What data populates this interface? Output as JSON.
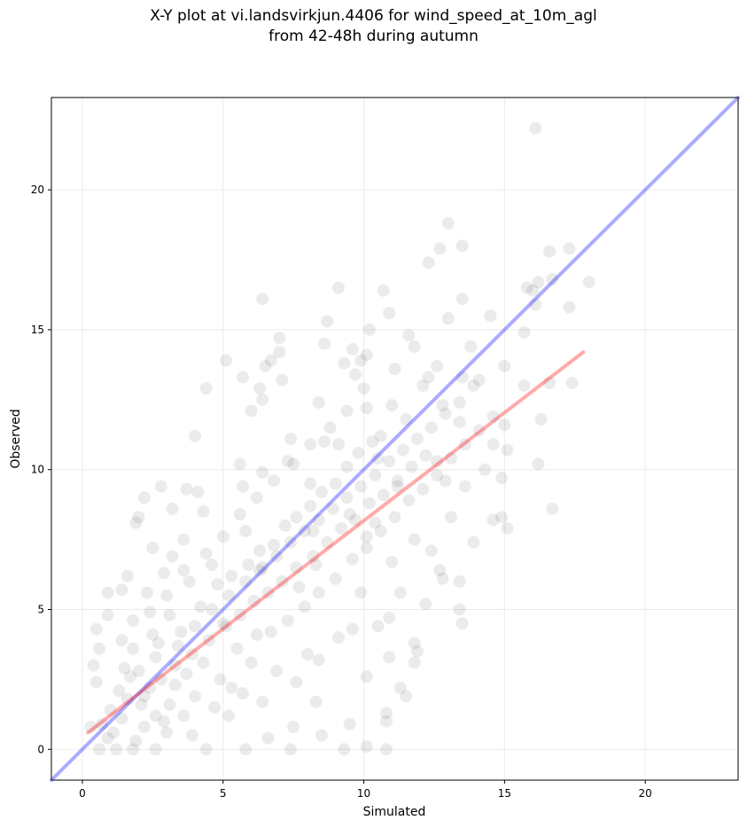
{
  "title": [
    "X-Y plot at vi.landsvirkjun.4406 for wind_speed_at_10m_agl",
    "from 42-48h during autumn"
  ],
  "chart_data": {
    "type": "scatter",
    "title": "X-Y plot at vi.landsvirkjun.4406 for wind_speed_at_10m_agl from 42-48h during autumn",
    "xlabel": "Simulated",
    "ylabel": "Observed",
    "xlim": [
      -1.1,
      23.3
    ],
    "ylim": [
      -1.1,
      23.3
    ],
    "x_ticks": [
      0,
      5,
      10,
      15,
      20
    ],
    "y_ticks": [
      0,
      5,
      10,
      15,
      20
    ],
    "grid": true,
    "legend": "none",
    "point_color": "#000000",
    "point_alpha": 0.08,
    "reference_lines": [
      {
        "kind": "identity",
        "color": "#0000ff",
        "alpha": 0.33,
        "x": [
          -1.1,
          23.3
        ],
        "y": [
          -1.1,
          23.3
        ]
      },
      {
        "kind": "fit",
        "color": "#ff0000",
        "alpha": 0.33,
        "x": [
          0.2,
          17.8
        ],
        "y": [
          0.6,
          14.2
        ]
      }
    ],
    "points": [
      [
        16.1,
        22.2
      ],
      [
        13.0,
        18.8
      ],
      [
        13.5,
        18.0
      ],
      [
        12.7,
        17.9
      ],
      [
        16.6,
        17.8
      ],
      [
        17.3,
        17.9
      ],
      [
        12.3,
        17.4
      ],
      [
        16.2,
        16.7
      ],
      [
        16.7,
        16.8
      ],
      [
        18.0,
        16.7
      ],
      [
        16.0,
        16.4
      ],
      [
        15.8,
        16.5
      ],
      [
        9.1,
        16.5
      ],
      [
        10.7,
        16.4
      ],
      [
        6.4,
        16.1
      ],
      [
        13.5,
        16.1
      ],
      [
        16.1,
        15.9
      ],
      [
        10.9,
        15.6
      ],
      [
        14.5,
        15.5
      ],
      [
        17.3,
        15.8
      ],
      [
        8.7,
        15.3
      ],
      [
        13.0,
        15.4
      ],
      [
        11.6,
        14.8
      ],
      [
        7.0,
        14.7
      ],
      [
        10.2,
        15.0
      ],
      [
        15.7,
        14.9
      ],
      [
        9.6,
        14.3
      ],
      [
        10.1,
        14.1
      ],
      [
        8.6,
        14.5
      ],
      [
        13.8,
        14.4
      ],
      [
        11.8,
        14.4
      ],
      [
        7.0,
        14.2
      ],
      [
        6.7,
        13.9
      ],
      [
        5.1,
        13.9
      ],
      [
        6.5,
        13.7
      ],
      [
        9.3,
        13.8
      ],
      [
        9.9,
        13.9
      ],
      [
        12.6,
        13.7
      ],
      [
        15.0,
        13.7
      ],
      [
        11.1,
        13.6
      ],
      [
        12.3,
        13.3
      ],
      [
        7.1,
        13.2
      ],
      [
        5.7,
        13.3
      ],
      [
        9.7,
        13.4
      ],
      [
        13.5,
        13.3
      ],
      [
        16.6,
        13.1
      ],
      [
        17.4,
        13.1
      ],
      [
        15.7,
        13.0
      ],
      [
        13.9,
        13.0
      ],
      [
        14.1,
        13.2
      ],
      [
        4.4,
        12.9
      ],
      [
        6.3,
        12.9
      ],
      [
        10.0,
        12.9
      ],
      [
        12.1,
        13.0
      ],
      [
        8.4,
        12.4
      ],
      [
        11.0,
        12.3
      ],
      [
        6.4,
        12.5
      ],
      [
        10.1,
        12.2
      ],
      [
        12.8,
        12.3
      ],
      [
        6.0,
        12.1
      ],
      [
        11.5,
        11.8
      ],
      [
        4.0,
        11.2
      ],
      [
        8.6,
        11.0
      ],
      [
        10.6,
        11.2
      ],
      [
        13.4,
        11.7
      ],
      [
        16.3,
        11.8
      ],
      [
        15.0,
        11.6
      ],
      [
        14.6,
        10.9
      ],
      [
        15.1,
        10.7
      ],
      [
        9.1,
        10.9
      ],
      [
        7.4,
        11.1
      ],
      [
        5.6,
        10.2
      ],
      [
        10.5,
        10.4
      ],
      [
        12.6,
        10.3
      ],
      [
        14.3,
        10.0
      ],
      [
        16.2,
        10.2
      ],
      [
        7.3,
        10.3
      ],
      [
        6.4,
        9.9
      ],
      [
        4.1,
        9.2
      ],
      [
        3.7,
        9.3
      ],
      [
        2.8,
        9.4
      ],
      [
        2.2,
        9.0
      ],
      [
        5.7,
        9.4
      ],
      [
        8.1,
        9.5
      ],
      [
        11.2,
        9.4
      ],
      [
        12.9,
        9.6
      ],
      [
        14.9,
        9.7
      ],
      [
        13.6,
        9.4
      ],
      [
        3.2,
        8.6
      ],
      [
        1.9,
        8.1
      ],
      [
        4.3,
        8.5
      ],
      [
        2.0,
        8.3
      ],
      [
        9.5,
        8.4
      ],
      [
        10.4,
        8.1
      ],
      [
        13.1,
        8.3
      ],
      [
        14.9,
        8.3
      ],
      [
        15.1,
        7.9
      ],
      [
        14.6,
        8.2
      ],
      [
        16.7,
        8.6
      ],
      [
        13.9,
        7.4
      ],
      [
        11.8,
        7.5
      ],
      [
        2.5,
        7.2
      ],
      [
        3.6,
        7.5
      ],
      [
        5.8,
        7.8
      ],
      [
        8.2,
        7.8
      ],
      [
        10.1,
        7.6
      ],
      [
        12.4,
        7.1
      ],
      [
        3.2,
        6.9
      ],
      [
        4.6,
        6.6
      ],
      [
        6.4,
        6.5
      ],
      [
        8.3,
        6.6
      ],
      [
        11.0,
        6.7
      ],
      [
        12.7,
        6.4
      ],
      [
        1.6,
        6.2
      ],
      [
        2.9,
        6.3
      ],
      [
        13.4,
        6.0
      ],
      [
        12.8,
        6.1
      ],
      [
        0.9,
        5.6
      ],
      [
        1.4,
        5.7
      ],
      [
        2.3,
        5.6
      ],
      [
        11.3,
        5.6
      ],
      [
        7.7,
        5.8
      ],
      [
        9.9,
        5.6
      ],
      [
        12.2,
        5.2
      ],
      [
        13.4,
        5.0
      ],
      [
        13.5,
        4.5
      ],
      [
        0.5,
        4.3
      ],
      [
        0.9,
        4.8
      ],
      [
        1.8,
        4.6
      ],
      [
        3.1,
        4.8
      ],
      [
        5.0,
        4.5
      ],
      [
        10.9,
        4.7
      ],
      [
        10.5,
        4.4
      ],
      [
        9.6,
        4.3
      ],
      [
        6.2,
        4.1
      ],
      [
        0.6,
        3.6
      ],
      [
        1.4,
        3.9
      ],
      [
        2.6,
        3.3
      ],
      [
        8.4,
        3.2
      ],
      [
        10.9,
        3.3
      ],
      [
        11.8,
        3.8
      ],
      [
        11.9,
        3.5
      ],
      [
        11.8,
        3.1
      ],
      [
        0.4,
        3.0
      ],
      [
        1.7,
        2.6
      ],
      [
        3.3,
        2.3
      ],
      [
        5.3,
        2.2
      ],
      [
        7.6,
        2.4
      ],
      [
        10.1,
        2.6
      ],
      [
        11.3,
        2.2
      ],
      [
        11.5,
        1.9
      ],
      [
        0.5,
        2.4
      ],
      [
        2.1,
        1.6
      ],
      [
        4.0,
        1.9
      ],
      [
        6.4,
        1.7
      ],
      [
        8.3,
        1.7
      ],
      [
        10.8,
        1.3
      ],
      [
        0.3,
        0.8
      ],
      [
        1.4,
        1.1
      ],
      [
        2.9,
        1.0
      ],
      [
        5.2,
        1.2
      ],
      [
        7.5,
        0.8
      ],
      [
        9.5,
        0.9
      ],
      [
        10.8,
        1.0
      ],
      [
        0.9,
        0.4
      ],
      [
        1.9,
        0.3
      ],
      [
        3.9,
        0.5
      ],
      [
        6.6,
        0.4
      ],
      [
        8.5,
        0.5
      ],
      [
        10.1,
        0.1
      ],
      [
        0.6,
        0.0
      ],
      [
        1.2,
        0.0
      ],
      [
        1.8,
        0.0
      ],
      [
        2.6,
        0.0
      ],
      [
        4.4,
        0.0
      ],
      [
        5.8,
        0.0
      ],
      [
        7.4,
        0.0
      ],
      [
        9.3,
        0.0
      ],
      [
        10.8,
        0.0
      ],
      [
        1.5,
        2.9
      ],
      [
        2.7,
        3.8
      ],
      [
        3.5,
        4.2
      ],
      [
        4.2,
        5.1
      ],
      [
        4.8,
        5.9
      ],
      [
        5.3,
        6.2
      ],
      [
        5.9,
        6.6
      ],
      [
        6.3,
        7.1
      ],
      [
        6.8,
        7.3
      ],
      [
        7.2,
        8.0
      ],
      [
        7.6,
        8.3
      ],
      [
        8.1,
        8.7
      ],
      [
        8.5,
        9.2
      ],
      [
        9.0,
        9.5
      ],
      [
        9.4,
        10.1
      ],
      [
        9.8,
        10.6
      ],
      [
        10.3,
        11.0
      ],
      [
        2.2,
        1.9
      ],
      [
        2.8,
        2.5
      ],
      [
        3.3,
        3.0
      ],
      [
        3.9,
        3.4
      ],
      [
        4.5,
        3.9
      ],
      [
        5.1,
        4.4
      ],
      [
        5.6,
        4.8
      ],
      [
        6.1,
        5.3
      ],
      [
        6.6,
        5.6
      ],
      [
        7.1,
        6.0
      ],
      [
        7.6,
        6.5
      ],
      [
        8.2,
        6.9
      ],
      [
        8.7,
        7.4
      ],
      [
        9.2,
        7.9
      ],
      [
        9.7,
        8.2
      ],
      [
        10.2,
        8.8
      ],
      [
        10.7,
        9.1
      ],
      [
        11.2,
        9.6
      ],
      [
        11.7,
        10.1
      ],
      [
        12.2,
        10.5
      ],
      [
        1.3,
        2.1
      ],
      [
        2.0,
        2.8
      ],
      [
        2.6,
        1.2
      ],
      [
        3.1,
        1.6
      ],
      [
        3.7,
        2.7
      ],
      [
        4.3,
        3.1
      ],
      [
        4.9,
        2.5
      ],
      [
        5.5,
        3.6
      ],
      [
        6.0,
        3.1
      ],
      [
        6.7,
        4.2
      ],
      [
        7.3,
        4.6
      ],
      [
        7.9,
        5.1
      ],
      [
        8.4,
        5.6
      ],
      [
        9.0,
        6.1
      ],
      [
        9.6,
        6.8
      ],
      [
        10.1,
        7.2
      ],
      [
        10.6,
        7.8
      ],
      [
        11.1,
        8.3
      ],
      [
        11.6,
        8.9
      ],
      [
        12.1,
        9.3
      ],
      [
        12.6,
        9.8
      ],
      [
        13.1,
        10.4
      ],
      [
        13.6,
        10.9
      ],
      [
        14.1,
        11.4
      ],
      [
        14.6,
        11.9
      ],
      [
        1.0,
        1.4
      ],
      [
        1.6,
        1.8
      ],
      [
        2.4,
        2.2
      ],
      [
        3.4,
        3.7
      ],
      [
        4.0,
        4.4
      ],
      [
        4.6,
        5.0
      ],
      [
        5.2,
        5.5
      ],
      [
        5.8,
        6.0
      ],
      [
        6.3,
        6.4
      ],
      [
        6.9,
        6.9
      ],
      [
        7.4,
        7.4
      ],
      [
        7.9,
        7.8
      ],
      [
        8.4,
        8.2
      ],
      [
        8.9,
        8.6
      ],
      [
        9.4,
        9.0
      ],
      [
        9.9,
        9.4
      ],
      [
        10.4,
        9.8
      ],
      [
        10.9,
        10.3
      ],
      [
        11.4,
        10.7
      ],
      [
        11.9,
        11.1
      ],
      [
        12.4,
        11.5
      ],
      [
        12.9,
        12.0
      ],
      [
        13.4,
        12.4
      ],
      [
        0.7,
        0.9
      ],
      [
        1.1,
        0.6
      ],
      [
        2.2,
        0.8
      ],
      [
        3.0,
        0.6
      ],
      [
        3.6,
        1.2
      ],
      [
        4.7,
        1.5
      ],
      [
        5.7,
        2.0
      ],
      [
        6.9,
        2.8
      ],
      [
        8.0,
        3.4
      ],
      [
        9.1,
        4.0
      ],
      [
        3.8,
        6.0
      ],
      [
        4.4,
        7.0
      ],
      [
        5.0,
        7.6
      ],
      [
        5.6,
        8.4
      ],
      [
        6.2,
        9.0
      ],
      [
        6.8,
        9.6
      ],
      [
        7.5,
        10.2
      ],
      [
        8.1,
        10.9
      ],
      [
        8.8,
        11.5
      ],
      [
        9.4,
        12.1
      ],
      [
        2.4,
        4.9
      ],
      [
        3.0,
        5.5
      ],
      [
        3.6,
        6.4
      ],
      [
        1.8,
        3.6
      ],
      [
        2.5,
        4.1
      ]
    ]
  }
}
